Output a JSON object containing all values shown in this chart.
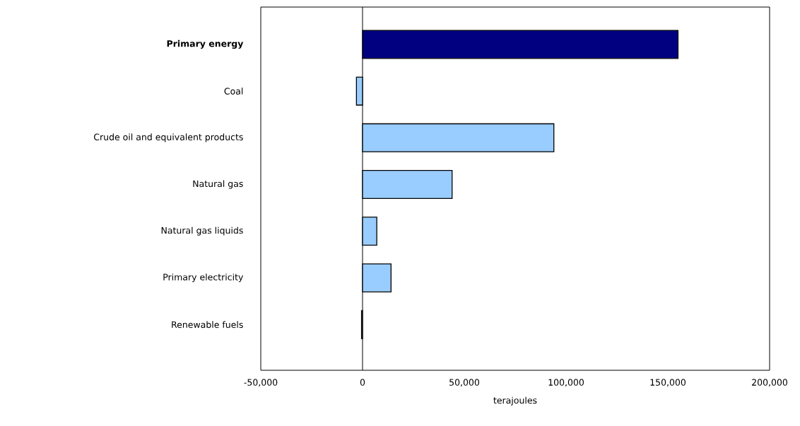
{
  "chart_data": {
    "type": "bar",
    "orientation": "horizontal",
    "xlabel": "terajoules",
    "categories": [
      "**Primary energy**",
      "Coal",
      "Crude oil and equivalent products",
      "Natural gas",
      "Natural gas liquids",
      "Primary electricity",
      "Renewable fuels"
    ],
    "values": [
      155000,
      -3000,
      94000,
      44000,
      7000,
      14000,
      -500
    ],
    "colors": [
      "#000080",
      "#99ccff",
      "#99ccff",
      "#99ccff",
      "#99ccff",
      "#99ccff",
      "#99ccff"
    ],
    "xlim": [
      -50000,
      200000
    ],
    "xticks": [
      {
        "value": -50000,
        "label": "-50,000"
      },
      {
        "value": 0,
        "label": "0"
      },
      {
        "value": 50000,
        "label": "50,000"
      },
      {
        "value": 100000,
        "label": "100,000"
      },
      {
        "value": 150000,
        "label": "150,000"
      },
      {
        "value": 200000,
        "label": "200,000"
      }
    ],
    "ref_lines": [
      {
        "axis": "x",
        "value": 0
      }
    ]
  }
}
